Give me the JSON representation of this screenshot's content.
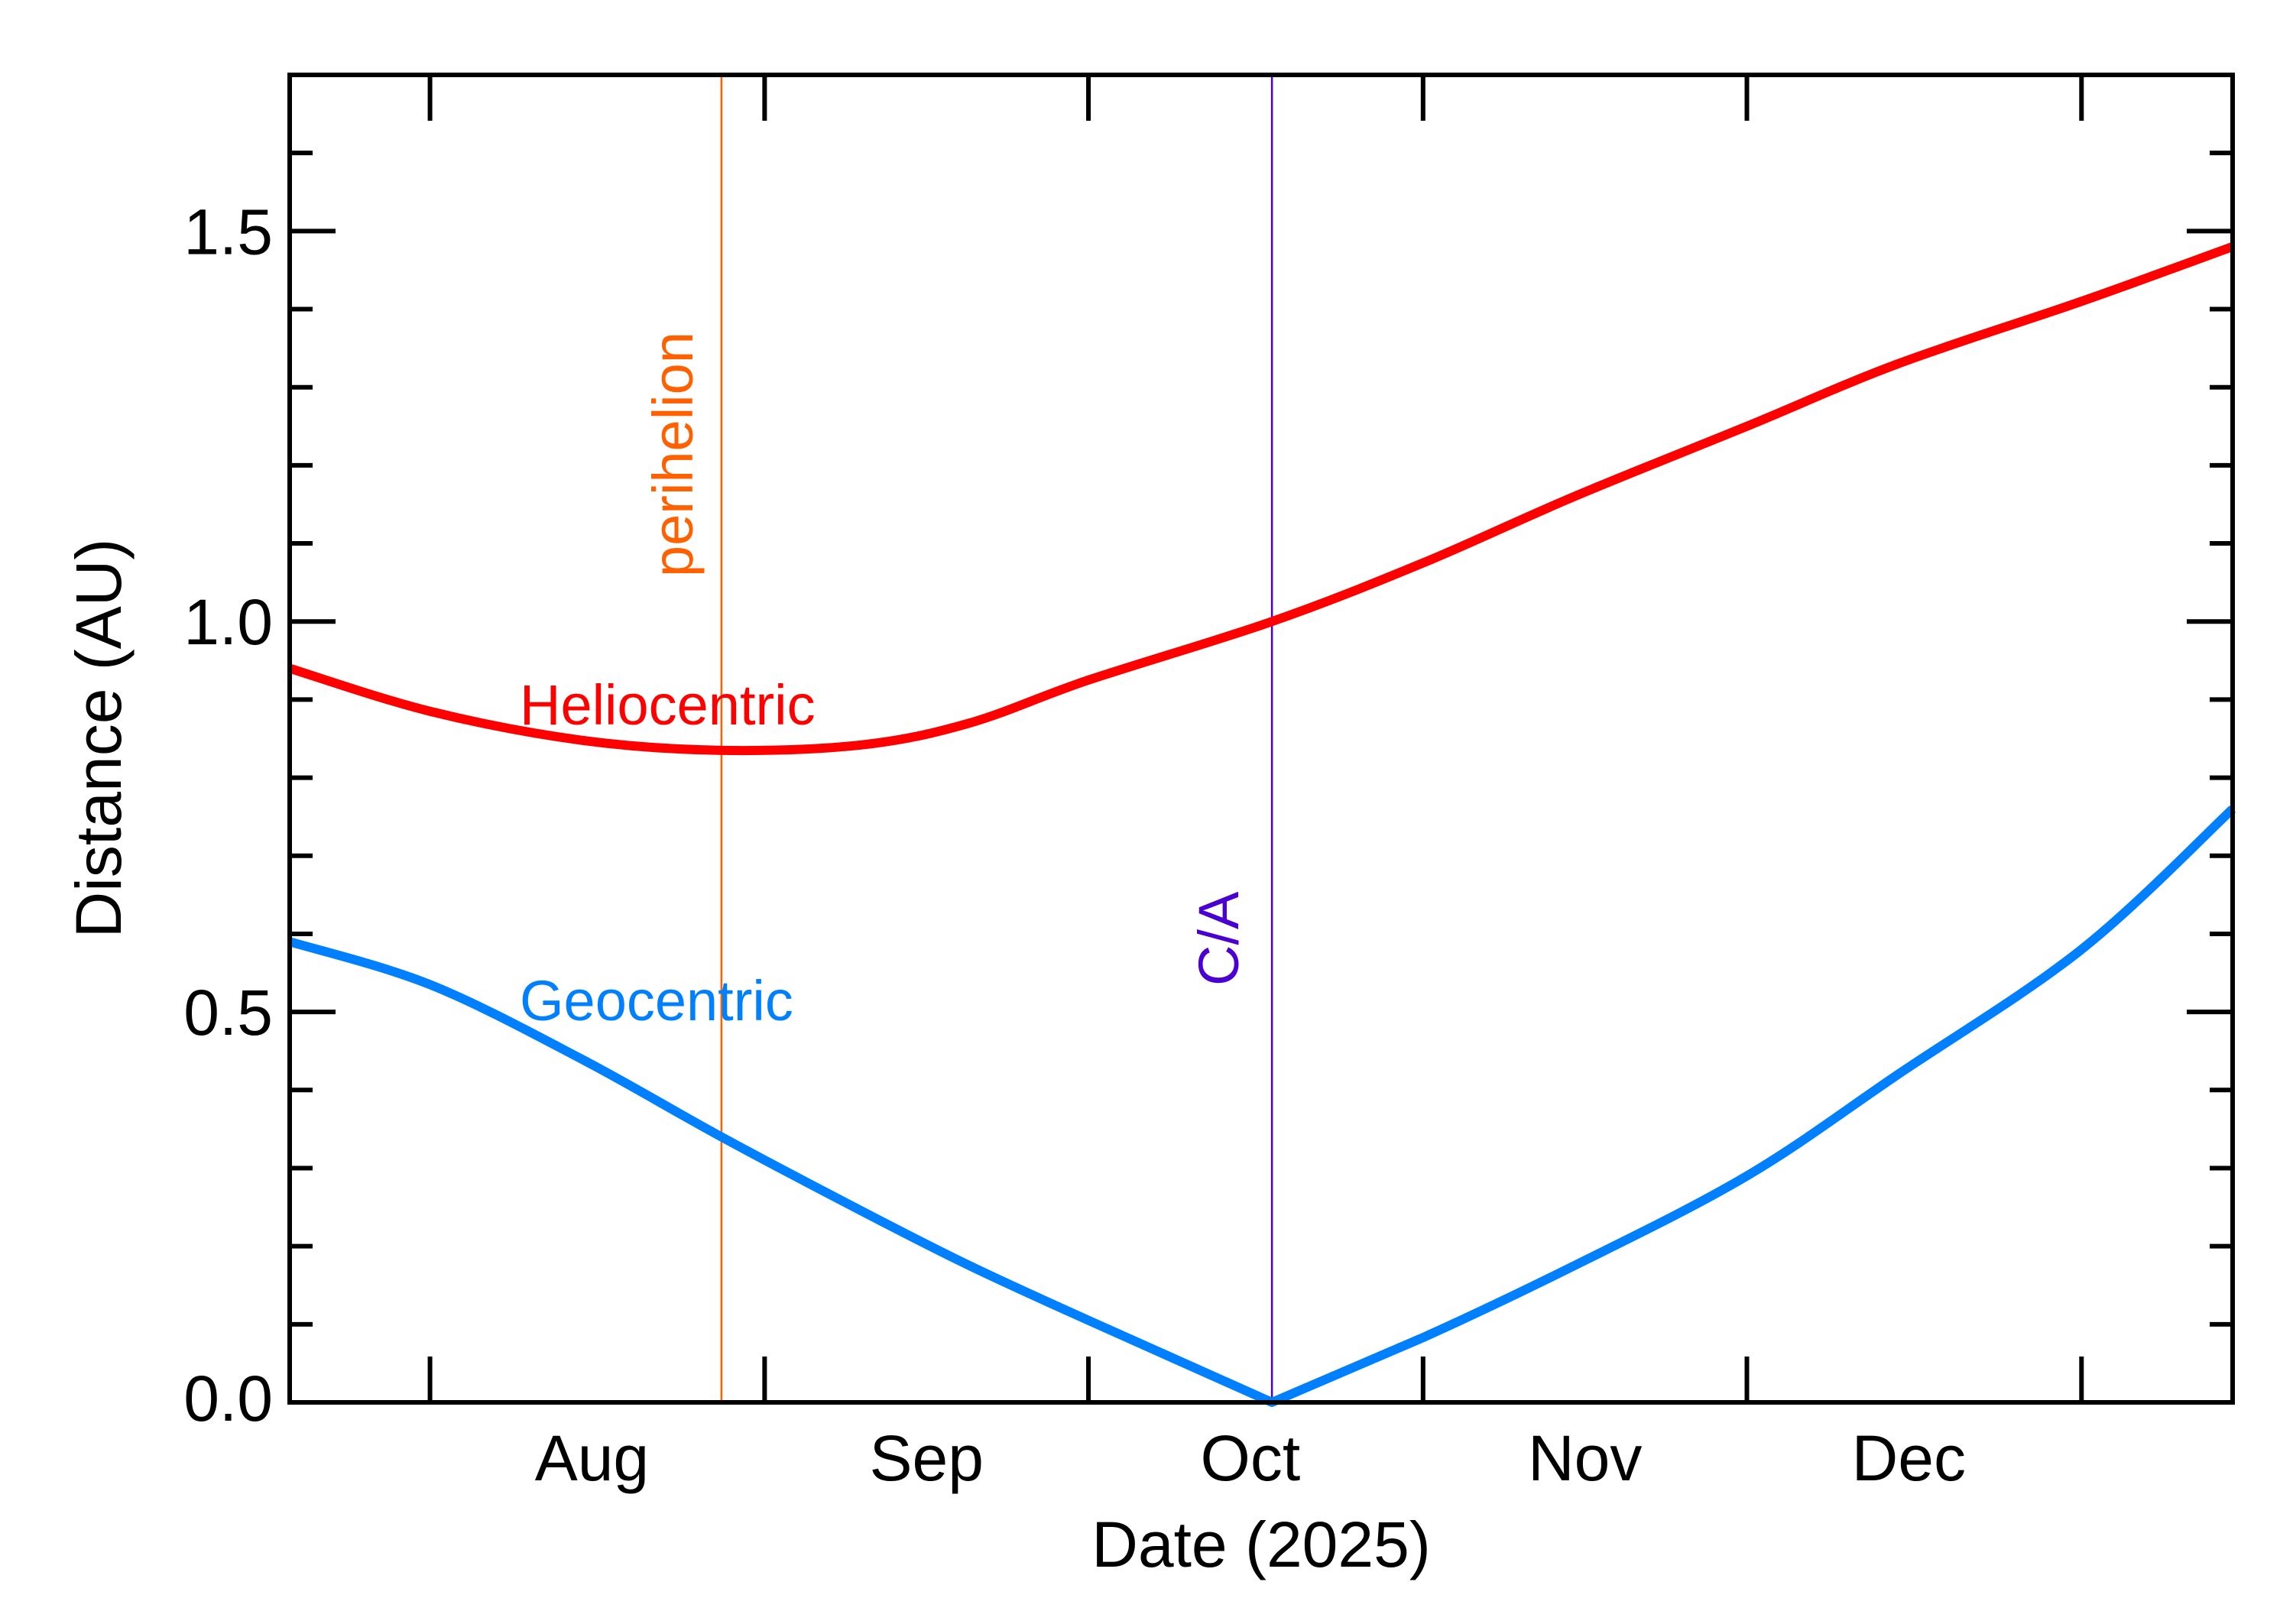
{
  "chart_data": {
    "type": "line",
    "title": "",
    "xlabel": "Date (2025)",
    "ylabel": "Distance (AU)",
    "xlim": [
      "2025-07-19",
      "2026-01-15"
    ],
    "ylim": [
      0,
      1.7
    ],
    "x_tick_labels": [
      {
        "label": "Aug",
        "date": "2025-08-16"
      },
      {
        "label": "Sep",
        "date": "2025-09-16"
      },
      {
        "label": "Oct",
        "date": "2025-10-16"
      },
      {
        "label": "Nov",
        "date": "2025-11-16"
      },
      {
        "label": "Dec",
        "date": "2025-12-16"
      }
    ],
    "x_major_ticks": [
      "2025-08-01",
      "2025-09-01",
      "2025-10-01",
      "2025-11-01",
      "2025-12-01",
      "2026-01-01"
    ],
    "y_ticks": [
      {
        "value": 0.0,
        "label": "0.0"
      },
      {
        "value": 0.5,
        "label": "0.5"
      },
      {
        "value": 1.0,
        "label": "1.0"
      },
      {
        "value": 1.5,
        "label": "1.5"
      }
    ],
    "y_minor_step": 0.1,
    "grid": false,
    "series": [
      {
        "name": "Heliocentric",
        "color": "#ff0000",
        "x": [
          "2025-07-19",
          "2025-08-01",
          "2025-08-15",
          "2025-08-28",
          "2025-09-10",
          "2025-09-20",
          "2025-10-01",
          "2025-10-18",
          "2025-11-01",
          "2025-11-15",
          "2025-12-01",
          "2025-12-15",
          "2026-01-01",
          "2026-01-15"
        ],
        "y": [
          0.94,
          0.885,
          0.848,
          0.835,
          0.842,
          0.87,
          0.925,
          1.0,
          1.075,
          1.16,
          1.25,
          1.33,
          1.41,
          1.48
        ]
      },
      {
        "name": "Geocentric",
        "color": "#0080ff",
        "x": [
          "2025-07-19",
          "2025-08-01",
          "2025-08-15",
          "2025-08-28",
          "2025-09-10",
          "2025-09-20",
          "2025-10-01",
          "2025-10-18",
          "2025-11-01",
          "2025-11-15",
          "2025-12-01",
          "2025-12-15",
          "2026-01-01",
          "2026-01-15"
        ],
        "y": [
          0.59,
          0.535,
          0.44,
          0.34,
          0.245,
          0.175,
          0.105,
          0.0,
          0.083,
          0.175,
          0.29,
          0.42,
          0.58,
          0.76
        ]
      }
    ],
    "annotations": [
      {
        "text": "perihelion",
        "date": "2025-08-28",
        "color": "#ff6000"
      },
      {
        "text": "C/A",
        "date": "2025-10-18",
        "color": "#4a00d0"
      }
    ]
  }
}
